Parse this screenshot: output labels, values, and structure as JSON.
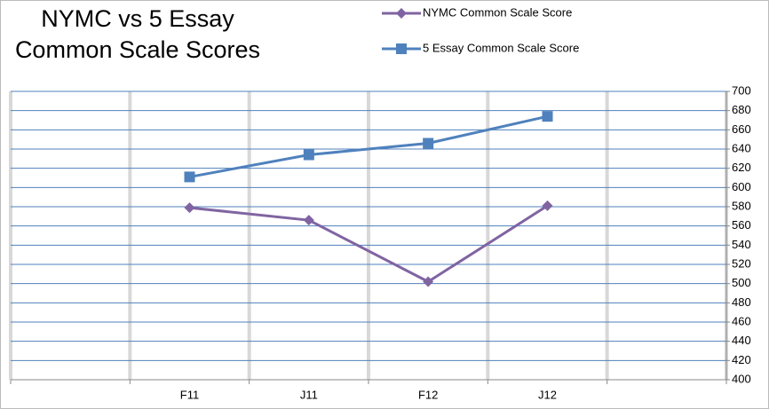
{
  "chart_data": {
    "type": "line",
    "title": "NYMC vs 5 Essay Common Scale Scores",
    "categories": [
      null,
      "F11",
      "J11",
      "F12",
      "J12",
      null
    ],
    "series": [
      {
        "name": "NYMC Common Scale Score",
        "color": "#8064a2",
        "marker": "diamond",
        "values": [
          null,
          579,
          566,
          502,
          581,
          null
        ]
      },
      {
        "name": "5 Essay Common Scale Score",
        "color": "#4f81bd",
        "marker": "square",
        "values": [
          null,
          611,
          634,
          646,
          674,
          null
        ]
      }
    ],
    "ylim": [
      400,
      700
    ],
    "yticks": [
      400,
      420,
      440,
      460,
      480,
      500,
      520,
      540,
      560,
      580,
      600,
      620,
      640,
      660,
      680,
      700
    ],
    "grid": true,
    "y_axis_side": "right",
    "legend": "top"
  }
}
